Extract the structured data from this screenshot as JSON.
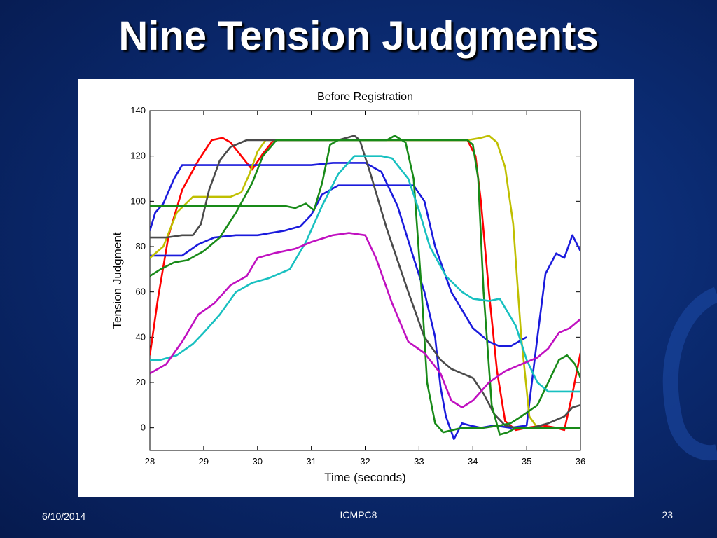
{
  "slide": {
    "title": "Nine Tension Judgments",
    "footer_date": "6/10/2014",
    "footer_center": "ICMPC8",
    "footer_page": "23"
  },
  "chart_data": {
    "type": "line",
    "title": "Before Registration",
    "xlabel": "Time (seconds)",
    "ylabel": "Tension Judgment",
    "xlim": [
      28,
      36
    ],
    "ylim": [
      -10,
      140
    ],
    "xticks": [
      28,
      29,
      30,
      31,
      32,
      33,
      34,
      35,
      36
    ],
    "yticks": [
      0,
      20,
      40,
      60,
      80,
      100,
      120,
      140
    ],
    "grid": false,
    "series": [
      {
        "color": "#ff0000",
        "x": [
          28,
          28.15,
          28.35,
          28.6,
          28.9,
          29.15,
          29.35,
          29.5,
          29.7,
          29.9,
          30.1,
          30.3,
          30.6,
          31,
          31.5,
          32,
          32.5,
          33,
          33.5,
          33.9,
          34.05,
          34.15,
          34.3,
          34.45,
          34.6,
          34.8,
          35,
          35.3,
          35.55,
          35.7,
          35.85,
          36
        ],
        "y": [
          32,
          57,
          85,
          105,
          118,
          127,
          128,
          126,
          120,
          114,
          121,
          127,
          127,
          127,
          127,
          127,
          127,
          127,
          127,
          127,
          120,
          100,
          60,
          25,
          3,
          -1,
          0,
          1,
          0,
          -1,
          15,
          33
        ]
      },
      {
        "color": "#1a1adc",
        "x": [
          28,
          28.1,
          28.25,
          28.45,
          28.6,
          28.8,
          29.2,
          29.8,
          30.4,
          31,
          31.4,
          31.8,
          32.0,
          32.3,
          32.6,
          32.9,
          33.1,
          33.3,
          33.4,
          33.5,
          33.65,
          33.8,
          33.95,
          34.15,
          34.4,
          34.7,
          35.0,
          35.2,
          35.35,
          35.55,
          35.7,
          35.85,
          36
        ],
        "y": [
          87,
          95,
          99,
          110,
          116,
          116,
          116,
          116,
          116,
          116,
          117,
          117,
          117,
          113,
          98,
          75,
          60,
          40,
          18,
          5,
          -5,
          2,
          1,
          0,
          1,
          0,
          1,
          40,
          68,
          77,
          75,
          85,
          78
        ]
      },
      {
        "color": "#1a1adc",
        "x": [
          28,
          28.3,
          28.6,
          28.9,
          29.2,
          29.6,
          30,
          30.5,
          30.8,
          31.0,
          31.2,
          31.5,
          32.0,
          32.4,
          32.7,
          32.9,
          33.1,
          33.3,
          33.6,
          34.0,
          34.3,
          34.5,
          34.7,
          34.85,
          35
        ],
        "y": [
          76,
          76,
          76,
          81,
          84,
          85,
          85,
          87,
          89,
          94,
          103,
          107,
          107,
          107,
          107,
          107,
          100,
          80,
          60,
          44,
          38,
          36,
          36,
          38,
          40
        ]
      },
      {
        "color": "#bfbf00",
        "x": [
          28,
          28.25,
          28.5,
          28.8,
          29.2,
          29.5,
          29.7,
          29.85,
          30.0,
          30.15,
          30.4,
          31,
          32,
          33,
          33.9,
          34.15,
          34.3,
          34.45,
          34.6,
          34.75,
          34.9,
          35.05,
          35.2
        ],
        "y": [
          75,
          80,
          95,
          102,
          102,
          102,
          104,
          112,
          122,
          127,
          127,
          127,
          127,
          127,
          127,
          128,
          129,
          126,
          115,
          90,
          40,
          5,
          0
        ]
      },
      {
        "color": "#4a4a4a",
        "x": [
          28,
          28.3,
          28.6,
          28.8,
          28.95,
          29.1,
          29.3,
          29.5,
          29.8,
          30.2,
          30.8,
          31.2,
          31.5,
          31.8,
          31.9,
          32.1,
          32.4,
          32.8,
          33.1,
          33.4,
          33.6,
          33.8,
          34.0,
          34.2,
          34.4,
          34.6,
          34.8,
          35.1,
          35.4,
          35.7,
          35.85,
          36
        ],
        "y": [
          84,
          84,
          85,
          85,
          90,
          105,
          118,
          124,
          127,
          127,
          127,
          127,
          127,
          129,
          127,
          112,
          88,
          60,
          40,
          30,
          26,
          24,
          22,
          15,
          6,
          1,
          0,
          0,
          2,
          5,
          9,
          10
        ]
      },
      {
        "color": "#188a18",
        "x": [
          28,
          28.2,
          28.45,
          28.7,
          29.0,
          29.3,
          29.6,
          29.9,
          30.1,
          30.35,
          30.55,
          30.8,
          31.2,
          31.8,
          32.1,
          32.4,
          32.55,
          32.75,
          32.9,
          33.05,
          33.15,
          33.3,
          33.45,
          33.8,
          34.2,
          34.5,
          34.7,
          34.9,
          35.2,
          35.4,
          35.6,
          35.75,
          35.9,
          36
        ],
        "y": [
          67,
          70,
          73,
          74,
          78,
          84,
          95,
          108,
          120,
          127,
          127,
          127,
          127,
          127,
          127,
          127,
          129,
          126,
          110,
          60,
          20,
          2,
          -2,
          0,
          0,
          1,
          2,
          5,
          10,
          20,
          30,
          32,
          28,
          22
        ]
      },
      {
        "color": "#188a18",
        "x": [
          28,
          29,
          30,
          30.5,
          30.7,
          30.9,
          31.05,
          31.2,
          31.35,
          31.5,
          32,
          33,
          33.9,
          34.0,
          34.1,
          34.2,
          34.35,
          34.5,
          34.65,
          34.8,
          35,
          36
        ],
        "y": [
          98,
          98,
          98,
          98,
          97,
          99,
          96,
          108,
          125,
          127,
          127,
          127,
          127,
          125,
          110,
          60,
          10,
          -3,
          -2,
          0,
          0,
          0
        ]
      },
      {
        "color": "#18c0c0",
        "x": [
          28,
          28.2,
          28.5,
          28.8,
          29.0,
          29.3,
          29.6,
          29.9,
          30.2,
          30.6,
          30.9,
          31.2,
          31.5,
          31.8,
          32.0,
          32.3,
          32.5,
          32.8,
          33.0,
          33.2,
          33.5,
          33.8,
          34.0,
          34.3,
          34.5,
          34.8,
          35.0,
          35.2,
          35.4,
          35.7,
          36
        ],
        "y": [
          30,
          30,
          32,
          37,
          42,
          50,
          60,
          64,
          66,
          70,
          82,
          98,
          112,
          120,
          120,
          120,
          119,
          110,
          96,
          80,
          67,
          60,
          57,
          56,
          57,
          45,
          30,
          20,
          16,
          16,
          16
        ]
      },
      {
        "color": "#c010c0",
        "x": [
          28,
          28.3,
          28.6,
          28.9,
          29.2,
          29.5,
          29.8,
          30.0,
          30.3,
          30.7,
          31.0,
          31.4,
          31.7,
          32.0,
          32.2,
          32.5,
          32.8,
          33.1,
          33.4,
          33.6,
          33.8,
          34.0,
          34.3,
          34.6,
          34.9,
          35.2,
          35.4,
          35.6,
          35.8,
          36
        ],
        "y": [
          24,
          28,
          38,
          50,
          55,
          63,
          67,
          75,
          77,
          79,
          82,
          85,
          86,
          85,
          75,
          55,
          38,
          33,
          24,
          12,
          9,
          12,
          20,
          25,
          28,
          31,
          35,
          42,
          44,
          48
        ]
      }
    ]
  }
}
